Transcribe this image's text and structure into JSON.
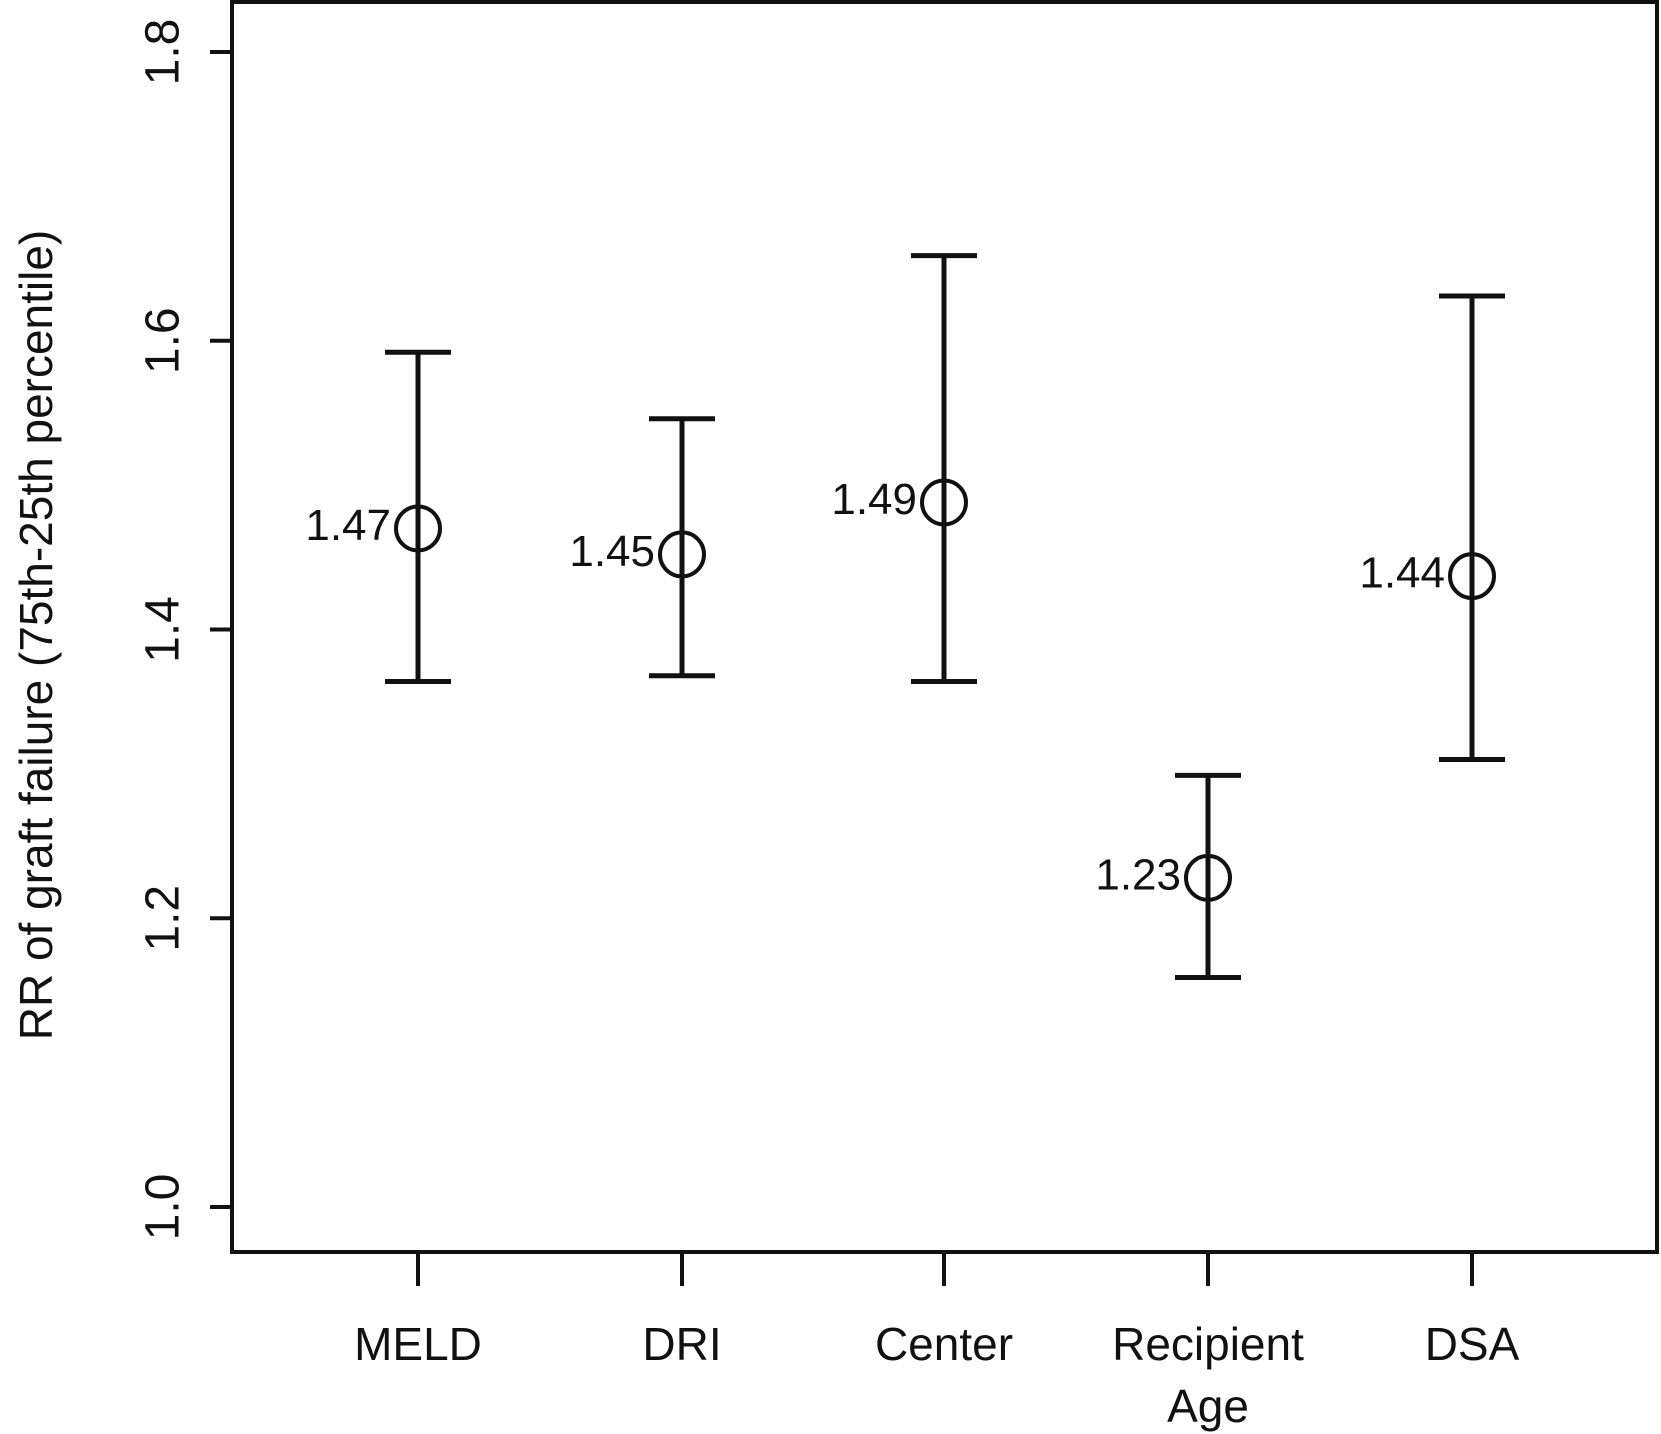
{
  "chart_data": {
    "type": "scatter",
    "title": "",
    "xlabel": "",
    "ylabel": "RR of graft failure (75th-25th percentile)",
    "ylim": [
      0.96,
      1.83
    ],
    "yticks": [
      {
        "value": 1.0,
        "label": "1.0"
      },
      {
        "value": 1.2,
        "label": "1.2"
      },
      {
        "value": 1.4,
        "label": "1.4"
      },
      {
        "value": 1.6,
        "label": "1.6"
      },
      {
        "value": 1.8,
        "label": "1.8"
      }
    ],
    "grid": false,
    "legend": "none",
    "categories": [
      {
        "lines": [
          "MELD"
        ]
      },
      {
        "lines": [
          "DRI"
        ]
      },
      {
        "lines": [
          "Center"
        ]
      },
      {
        "lines": [
          "Recipient",
          "Age"
        ]
      },
      {
        "lines": [
          "DSA"
        ]
      }
    ],
    "points": [
      {
        "estimate": 1.47,
        "lower": 1.364,
        "upper": 1.592,
        "label": "1.47"
      },
      {
        "estimate": 1.452,
        "lower": 1.368,
        "upper": 1.546,
        "label": "1.45"
      },
      {
        "estimate": 1.488,
        "lower": 1.364,
        "upper": 1.659,
        "label": "1.49"
      },
      {
        "estimate": 1.228,
        "lower": 1.159,
        "upper": 1.299,
        "label": "1.23"
      },
      {
        "estimate": 1.437,
        "lower": 1.31,
        "upper": 1.631,
        "label": "1.44"
      }
    ]
  }
}
